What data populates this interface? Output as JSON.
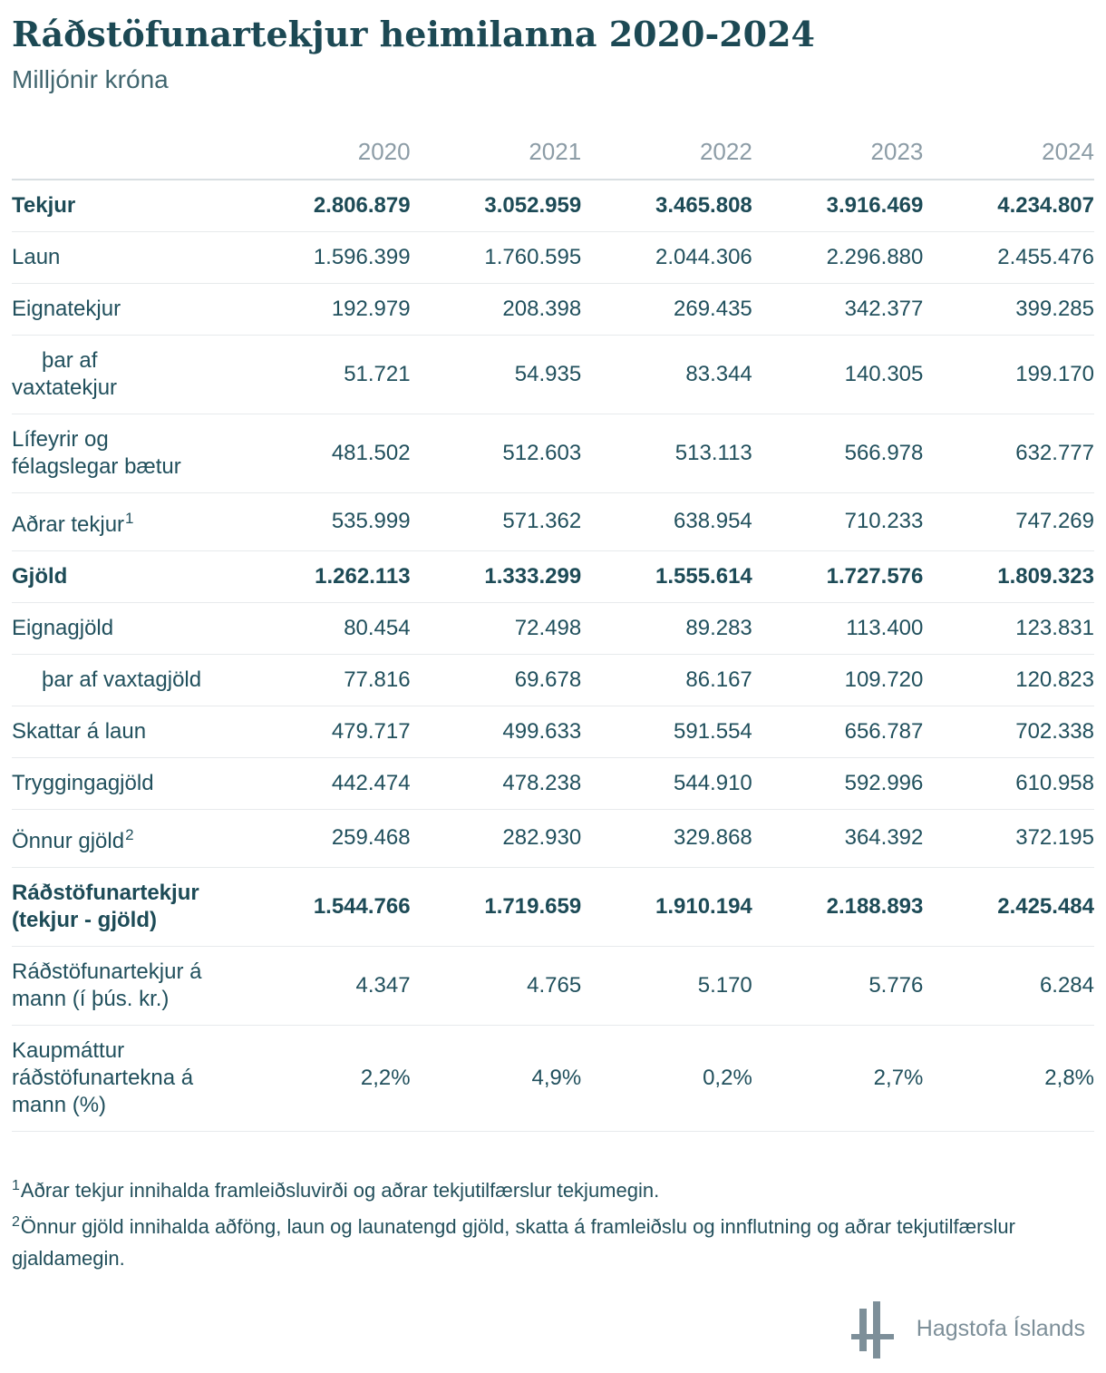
{
  "chart_data": {
    "type": "table",
    "title": "Ráðstöfunartekjur heimilanna 2020-2024",
    "subtitle": "Milljónir króna",
    "unit": "Milljónir króna",
    "categories": [
      "2020",
      "2021",
      "2022",
      "2023",
      "2024"
    ],
    "rows": [
      {
        "label": "Tekjur",
        "bold": true,
        "values": [
          "2.806.879",
          "3.052.959",
          "3.465.808",
          "3.916.469",
          "4.234.807"
        ]
      },
      {
        "label": "Laun",
        "values": [
          "1.596.399",
          "1.760.595",
          "2.044.306",
          "2.296.880",
          "2.455.476"
        ]
      },
      {
        "label": "Eignatekjur",
        "values": [
          "192.979",
          "208.398",
          "269.435",
          "342.377",
          "399.285"
        ]
      },
      {
        "label": [
          "þar af",
          "vaxtatekjur"
        ],
        "indent": true,
        "values": [
          "51.721",
          "54.935",
          "83.344",
          "140.305",
          "199.170"
        ]
      },
      {
        "label": [
          "Lífeyrir og",
          "félagslegar bætur"
        ],
        "values": [
          "481.502",
          "512.603",
          "513.113",
          "566.978",
          "632.777"
        ]
      },
      {
        "label": "Aðrar tekjur",
        "sup": "1",
        "values": [
          "535.999",
          "571.362",
          "638.954",
          "710.233",
          "747.269"
        ]
      },
      {
        "label": "Gjöld",
        "bold": true,
        "values": [
          "1.262.113",
          "1.333.299",
          "1.555.614",
          "1.727.576",
          "1.809.323"
        ]
      },
      {
        "label": "Eignagjöld",
        "values": [
          "80.454",
          "72.498",
          "89.283",
          "113.400",
          "123.831"
        ]
      },
      {
        "label": "þar af vaxtagjöld",
        "indent": true,
        "values": [
          "77.816",
          "69.678",
          "86.167",
          "109.720",
          "120.823"
        ]
      },
      {
        "label": "Skattar á laun",
        "values": [
          "479.717",
          "499.633",
          "591.554",
          "656.787",
          "702.338"
        ]
      },
      {
        "label": "Tryggingagjöld",
        "values": [
          "442.474",
          "478.238",
          "544.910",
          "592.996",
          "610.958"
        ]
      },
      {
        "label": "Önnur gjöld",
        "sup": "2",
        "values": [
          "259.468",
          "282.930",
          "329.868",
          "364.392",
          "372.195"
        ]
      },
      {
        "label": [
          "Ráðstöfunartekjur",
          "(tekjur - gjöld)"
        ],
        "bold": true,
        "values": [
          "1.544.766",
          "1.719.659",
          "1.910.194",
          "2.188.893",
          "2.425.484"
        ]
      },
      {
        "label": [
          "Ráðstöfunartekjur á",
          "mann (í þús. kr.)"
        ],
        "values": [
          "4.347",
          "4.765",
          "5.170",
          "5.776",
          "6.284"
        ]
      },
      {
        "label": [
          "Kaupmáttur",
          "ráðstöfunartekna á",
          "mann (%)"
        ],
        "values": [
          "2,2%",
          "4,9%",
          "0,2%",
          "2,7%",
          "2,8%"
        ]
      }
    ]
  },
  "footnotes": [
    {
      "marker": "1",
      "text": "Aðrar tekjur innihalda framleiðsluvirði og aðrar tekjutilfærslur tekjumegin."
    },
    {
      "marker": "2",
      "text": "Önnur gjöld innihalda aðföng, laun og launatengd gjöld, skatta á framleiðslu og innflutning og aðrar tekjutilfærslur gjaldamegin."
    }
  ],
  "logo": {
    "text": "Hagstofa Íslands"
  },
  "colors": {
    "text_teal": "#1d4b57",
    "title_teal": "#1c4954",
    "muted_year_gray": "#8c9ca6",
    "border_gray": "#e7eaec",
    "header_border_gray": "#d9dfe2",
    "logo_gray": "#7d8f99"
  }
}
